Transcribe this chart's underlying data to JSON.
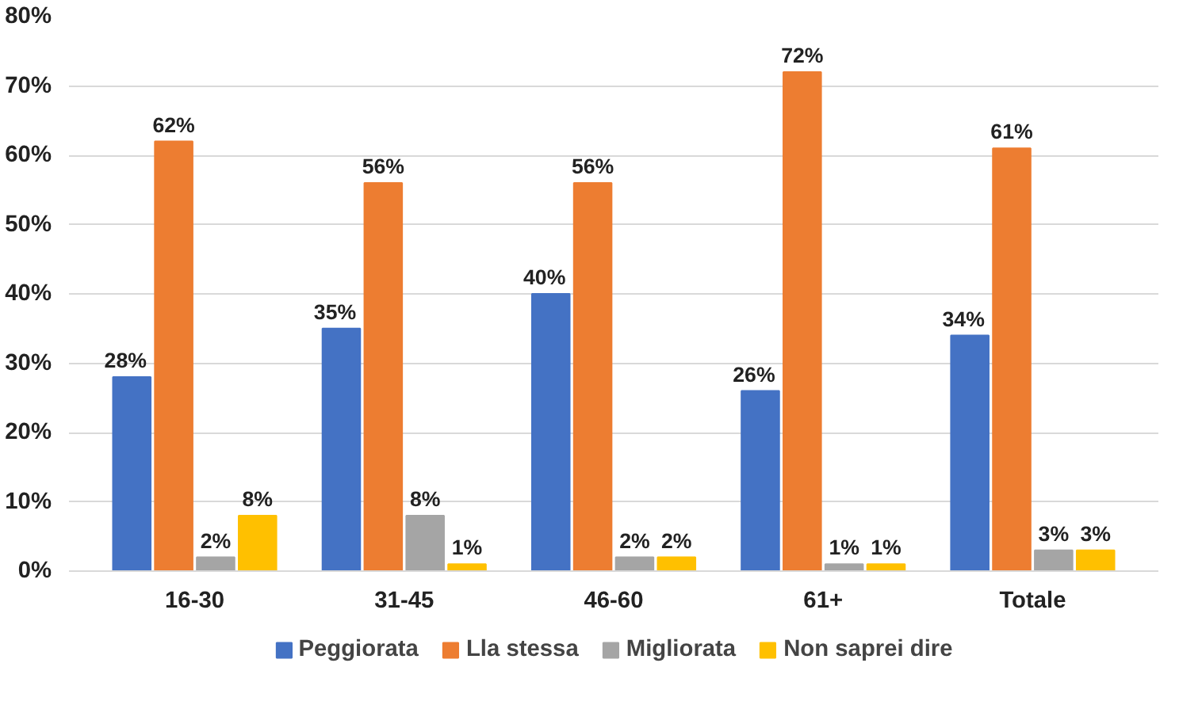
{
  "chart_data": {
    "type": "bar",
    "categories": [
      "16-30",
      "31-45",
      "46-60",
      "61+",
      "Totale"
    ],
    "series": [
      {
        "name": "Peggiorata",
        "color": "#4472c4",
        "values": [
          28,
          35,
          40,
          26,
          34
        ],
        "value_labels": [
          "28%",
          "35%",
          "40%",
          "26%",
          "34%"
        ]
      },
      {
        "name": "Lla stessa",
        "color": "#ed7d31",
        "values": [
          62,
          56,
          56,
          72,
          61
        ],
        "value_labels": [
          "62%",
          "56%",
          "56%",
          "72%",
          "61%"
        ]
      },
      {
        "name": "Migliorata",
        "color": "#a5a5a5",
        "values": [
          2,
          8,
          2,
          1,
          3
        ],
        "value_labels": [
          "2%",
          "8%",
          "2%",
          "1%",
          "3%"
        ]
      },
      {
        "name": "Non saprei dire",
        "color": "#ffc000",
        "values": [
          8,
          1,
          2,
          1,
          3
        ],
        "value_labels": [
          "8%",
          "1%",
          "2%",
          "1%",
          "3%"
        ]
      }
    ],
    "ylim": [
      0,
      80
    ],
    "yticks": [
      {
        "value": 0,
        "label": "0%"
      },
      {
        "value": 10,
        "label": "10%"
      },
      {
        "value": 20,
        "label": "20%"
      },
      {
        "value": 30,
        "label": "30%"
      },
      {
        "value": 40,
        "label": "40%"
      },
      {
        "value": 50,
        "label": "50%"
      },
      {
        "value": 60,
        "label": "60%"
      },
      {
        "value": 70,
        "label": "70%"
      },
      {
        "value": 80,
        "label": "80%"
      }
    ],
    "grid": "y",
    "legend": "bottom"
  }
}
